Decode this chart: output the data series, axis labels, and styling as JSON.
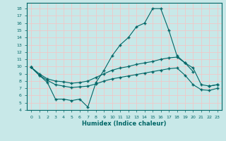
{
  "title": "",
  "xlabel": "Humidex (Indice chaleur)",
  "ylabel": "",
  "bg_color": "#c8e8e8",
  "line_color": "#006666",
  "grid_color": "#f0c8c8",
  "xlim": [
    -0.5,
    23.5
  ],
  "ylim": [
    4,
    18.8
  ],
  "yticks": [
    4,
    5,
    6,
    7,
    8,
    9,
    10,
    11,
    12,
    13,
    14,
    15,
    16,
    17,
    18
  ],
  "xticks": [
    0,
    1,
    2,
    3,
    4,
    5,
    6,
    7,
    8,
    9,
    10,
    11,
    12,
    13,
    14,
    15,
    16,
    17,
    18,
    19,
    20,
    21,
    22,
    23
  ],
  "curve_peak_x": [
    0,
    1,
    2,
    3,
    4,
    5,
    6,
    7,
    8,
    9,
    10,
    11,
    12,
    13,
    14,
    15,
    16,
    17,
    18,
    19,
    20,
    21,
    22,
    23
  ],
  "curve_peak_y": [
    9.9,
    8.8,
    7.8,
    5.5,
    5.5,
    5.3,
    5.5,
    4.4,
    7.8,
    9.5,
    11.5,
    13.0,
    14.0,
    15.5,
    16.0,
    18.0,
    18.0,
    15.0,
    11.5,
    10.5,
    9.3,
    null,
    7.3,
    7.5
  ],
  "curve_upper_x": [
    0,
    1,
    2,
    3,
    4,
    5,
    6,
    7,
    8,
    9,
    10,
    11,
    12,
    13,
    14,
    15,
    16,
    17,
    18,
    19,
    20,
    21,
    22,
    23
  ],
  "curve_upper_y": [
    9.9,
    9.0,
    8.3,
    8.0,
    7.9,
    7.7,
    7.8,
    8.0,
    8.5,
    9.0,
    9.5,
    9.8,
    10.0,
    10.3,
    10.5,
    10.7,
    11.0,
    11.2,
    11.3,
    10.5,
    9.8,
    7.5,
    7.3,
    7.5
  ],
  "curve_lower_x": [
    0,
    1,
    2,
    3,
    4,
    5,
    6,
    7,
    8,
    9,
    10,
    11,
    12,
    13,
    14,
    15,
    16,
    17,
    18,
    19,
    20,
    21,
    22,
    23
  ],
  "curve_lower_y": [
    9.9,
    8.8,
    8.1,
    7.5,
    7.3,
    7.1,
    7.2,
    7.3,
    7.6,
    8.0,
    8.3,
    8.5,
    8.7,
    8.9,
    9.1,
    9.3,
    9.5,
    9.7,
    9.8,
    8.8,
    7.5,
    6.8,
    6.7,
    7.0
  ]
}
